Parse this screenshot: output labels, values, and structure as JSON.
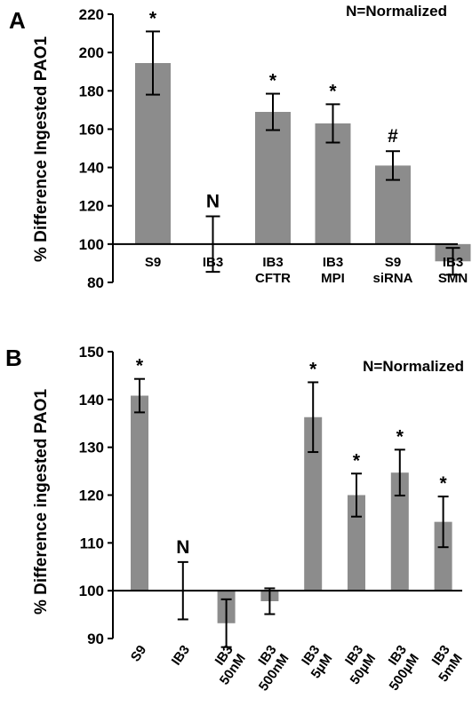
{
  "chart_data": [
    {
      "type": "bar",
      "panel_label": "A",
      "ylabel": "% Difference Ingested PAO1",
      "note": "N=Normalized",
      "ylim": [
        80,
        220
      ],
      "baseline": 100,
      "yticks": [
        80,
        100,
        120,
        140,
        160,
        180,
        200,
        220
      ],
      "categories": [
        [
          "S9"
        ],
        [
          "IB3"
        ],
        [
          "IB3",
          "CFTR"
        ],
        [
          "IB3",
          "MPI"
        ],
        [
          "S9",
          "siRNA"
        ],
        [
          "IB3",
          "SMN"
        ]
      ],
      "values": [
        194.5,
        100,
        169,
        163,
        141,
        91
      ],
      "error": [
        16.5,
        14.5,
        9.5,
        10,
        7.5,
        7
      ],
      "annotations": [
        "*",
        "N",
        "*",
        "*",
        "#",
        ""
      ],
      "bar_color": "#8c8c8c"
    },
    {
      "type": "bar",
      "panel_label": "B",
      "ylabel": "% Difference ingested PAO1",
      "note": "N=Normalized",
      "ylim": [
        90,
        150
      ],
      "baseline": 100,
      "yticks": [
        90,
        100,
        110,
        120,
        130,
        140,
        150
      ],
      "categories": [
        [
          "S9"
        ],
        [
          "IB3"
        ],
        [
          "IB3",
          "50nM"
        ],
        [
          "IB3",
          "500nM"
        ],
        [
          "IB3",
          "5µM"
        ],
        [
          "IB3",
          "50µM"
        ],
        [
          "IB3",
          "500µM"
        ],
        [
          "IB3",
          "5mM"
        ]
      ],
      "values": [
        140.8,
        100,
        93.2,
        97.8,
        136.3,
        120,
        124.7,
        114.4
      ],
      "error": [
        3.5,
        6,
        5,
        2.7,
        7.3,
        4.5,
        4.8,
        5.3
      ],
      "annotations": [
        "*",
        "N",
        "",
        "",
        "*",
        "*",
        "*",
        "*"
      ],
      "bar_color": "#8c8c8c"
    }
  ]
}
